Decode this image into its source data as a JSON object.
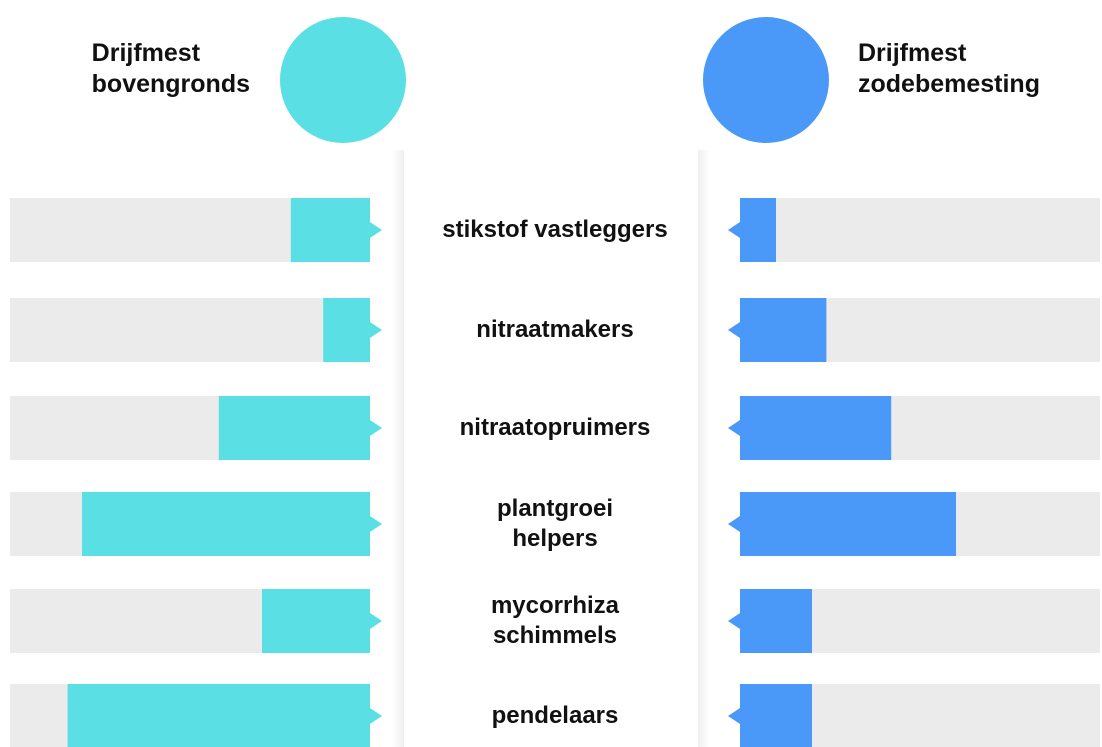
{
  "chart_data": {
    "type": "butterfly",
    "categories": [
      "stikstof vastleggers",
      "nitraatmakers",
      "nitraatopruimers",
      "plantgroei\nhelpers",
      "mycorrhiza\nschimmels",
      "pendelaars"
    ],
    "series": [
      {
        "name": "Drijfmest\nbovengronds",
        "color": "#5ae0e4",
        "values": [
          22,
          13,
          42,
          80,
          30,
          84
        ]
      },
      {
        "name": "Drijfmest\nzodebemesting",
        "color": "#4a98f7",
        "values": [
          10,
          24,
          42,
          60,
          20,
          20
        ]
      }
    ],
    "xlim": [
      0,
      100
    ]
  }
}
